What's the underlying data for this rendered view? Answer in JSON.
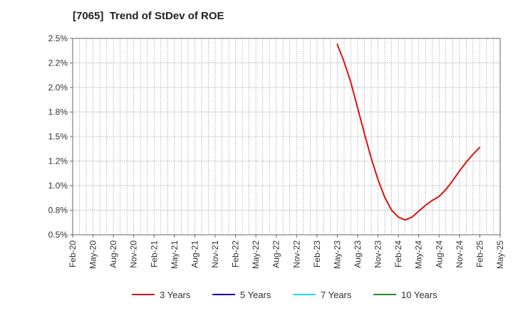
{
  "chart_data": {
    "type": "line",
    "title": "[7065]  Trend of StDev of ROE",
    "xlabel": "",
    "ylabel": "",
    "x_ticks": [
      "Feb-20",
      "May-20",
      "Aug-20",
      "Nov-20",
      "Feb-21",
      "May-21",
      "Aug-21",
      "Nov-21",
      "Feb-22",
      "May-22",
      "Aug-22",
      "Nov-22",
      "Feb-23",
      "May-23",
      "Aug-23",
      "Nov-23",
      "Feb-24",
      "May-24",
      "Aug-24",
      "Nov-24",
      "Feb-25",
      "May-25"
    ],
    "y_ticks": [
      "0.5%",
      "0.8%",
      "1.0%",
      "1.2%",
      "1.5%",
      "1.8%",
      "2.0%",
      "2.2%",
      "2.5%"
    ],
    "ylim": [
      0.5,
      2.5
    ],
    "grid": true,
    "legend_position": "bottom",
    "series": [
      {
        "name": "3 Years",
        "color": "#dd1111",
        "x": [
          "2023-05",
          "2023-06",
          "2023-07",
          "2023-08",
          "2023-09",
          "2023-10",
          "2023-11",
          "2023-12",
          "2024-01",
          "2024-02",
          "2024-03",
          "2024-04",
          "2024-05",
          "2024-06",
          "2024-07",
          "2024-08",
          "2024-09",
          "2024-10",
          "2024-11",
          "2024-12",
          "2025-01",
          "2025-02"
        ],
        "values": [
          2.44,
          2.26,
          2.05,
          1.79,
          1.53,
          1.28,
          1.06,
          0.88,
          0.75,
          0.68,
          0.65,
          0.68,
          0.74,
          0.8,
          0.85,
          0.89,
          0.96,
          1.05,
          1.15,
          1.24,
          1.32,
          1.39
        ]
      },
      {
        "name": "5 Years",
        "color": "#0000cc",
        "x": [],
        "values": []
      },
      {
        "name": "7 Years",
        "color": "#00e5ee",
        "x": [],
        "values": []
      },
      {
        "name": "10 Years",
        "color": "#228b22",
        "x": [],
        "values": []
      }
    ]
  }
}
